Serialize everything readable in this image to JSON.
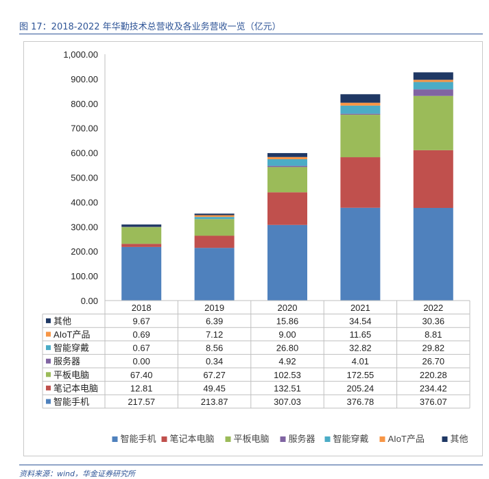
{
  "figure_title": "图 17：2018-2022 年华勤技术总营收及各业务营收一览（亿元）",
  "source_note": "资料来源：wind，华金证券研究所",
  "chart_data": {
    "type": "bar",
    "stacked": true,
    "title": "",
    "xlabel": "",
    "ylabel": "",
    "ylim": [
      0,
      1000
    ],
    "yticks": [
      "0.00",
      "100.00",
      "200.00",
      "300.00",
      "400.00",
      "500.00",
      "600.00",
      "700.00",
      "800.00",
      "900.00",
      "1,000.00"
    ],
    "categories": [
      "2018",
      "2019",
      "2020",
      "2021",
      "2022"
    ],
    "series": [
      {
        "name": "智能手机",
        "color": "#4f81bd",
        "values": [
          217.57,
          213.87,
          307.03,
          376.78,
          376.07
        ],
        "labels": [
          "217.57",
          "213.87",
          "307.03",
          "376.78",
          "376.07"
        ]
      },
      {
        "name": "笔记本电脑",
        "color": "#c0504d",
        "values": [
          12.81,
          49.45,
          132.51,
          205.24,
          234.42
        ],
        "labels": [
          "12.81",
          "49.45",
          "132.51",
          "205.24",
          "234.42"
        ]
      },
      {
        "name": "平板电脑",
        "color": "#9bbb59",
        "values": [
          67.4,
          67.27,
          102.53,
          172.55,
          220.28
        ],
        "labels": [
          "67.40",
          "67.27",
          "102.53",
          "172.55",
          "220.28"
        ]
      },
      {
        "name": "服务器",
        "color": "#8064a2",
        "values": [
          0.0,
          0.34,
          4.92,
          4.01,
          26.7
        ],
        "labels": [
          "0.00",
          "0.34",
          "4.92",
          "4.01",
          "26.70"
        ]
      },
      {
        "name": "智能穿戴",
        "color": "#4bacc6",
        "values": [
          0.67,
          8.56,
          26.8,
          32.82,
          29.82
        ],
        "labels": [
          "0.67",
          "8.56",
          "26.80",
          "32.82",
          "29.82"
        ]
      },
      {
        "name": "AIoT产品",
        "color": "#f79646",
        "values": [
          0.69,
          7.12,
          9.0,
          11.65,
          8.81
        ],
        "labels": [
          "0.69",
          "7.12",
          "9.00",
          "11.65",
          "8.81"
        ]
      },
      {
        "name": "其他",
        "color": "#1f3864",
        "values": [
          9.67,
          6.39,
          15.86,
          34.54,
          30.36
        ],
        "labels": [
          "9.67",
          "6.39",
          "15.86",
          "34.54",
          "30.36"
        ]
      }
    ],
    "legend_position": "bottom",
    "data_table": true,
    "grid": false
  }
}
